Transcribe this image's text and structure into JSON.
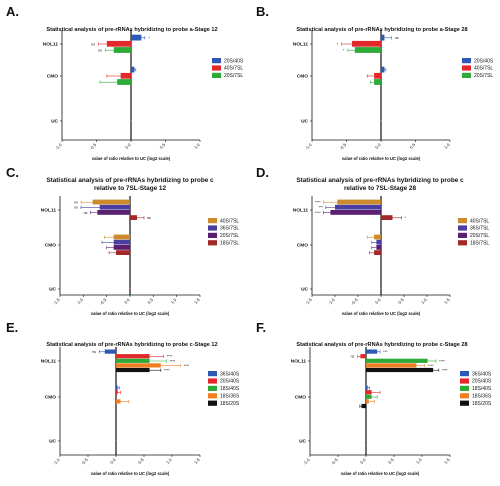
{
  "chart_data": [
    {
      "panel": "A.",
      "type": "bar",
      "title": "Statistical analysis of pre-rRNAs hybridizing to probe a-Stage 12",
      "xlabel": "value of ratio relative to UC (log2 scale)",
      "xlim": [
        -1.0,
        1.0
      ],
      "xticks": [
        "-1.0",
        "-0.5",
        "0.0",
        "0.5",
        "1.0"
      ],
      "categories": [
        "NOL11",
        "CMO",
        "UC"
      ],
      "series": [
        {
          "name": "20S/40S",
          "color": "#2e58b8",
          "values": [
            0.15,
            0.05,
            0.0
          ],
          "errors": [
            0.05,
            0.02,
            0.0
          ],
          "annotations": [
            "*",
            "",
            ""
          ]
        },
        {
          "name": "40S/7SL",
          "color": "#e2282b",
          "values": [
            -0.35,
            -0.15,
            0.0
          ],
          "errors": [
            0.12,
            0.2,
            0.0
          ],
          "annotations": [
            "ns",
            "",
            ""
          ]
        },
        {
          "name": "20S/7SL",
          "color": "#2eaa38",
          "values": [
            -0.25,
            -0.2,
            0.0
          ],
          "errors": [
            0.12,
            0.25,
            0.0
          ],
          "annotations": [
            "ns",
            "",
            ""
          ]
        }
      ]
    },
    {
      "panel": "B.",
      "type": "bar",
      "title": "Statistical analysis of pre-rRNAs hybridizing to probe a-Stage 28",
      "xlabel": "value of ratio relative to UC (log2 scale)",
      "xlim": [
        -1.0,
        1.0
      ],
      "xticks": [
        "-1.0",
        "-0.5",
        "0.0",
        "0.5",
        "1.0"
      ],
      "categories": [
        "NOL11",
        "CMO",
        "UC"
      ],
      "series": [
        {
          "name": "20S/40S",
          "color": "#2e58b8",
          "values": [
            0.05,
            0.05,
            0.0
          ],
          "errors": [
            0.1,
            0.02,
            0.0
          ],
          "annotations": [
            "ns",
            "",
            ""
          ]
        },
        {
          "name": "40S/7SL",
          "color": "#e2282b",
          "values": [
            -0.42,
            -0.1,
            0.0
          ],
          "errors": [
            0.15,
            0.1,
            0.0
          ],
          "annotations": [
            "*",
            "",
            ""
          ]
        },
        {
          "name": "20S/7SL",
          "color": "#2eaa38",
          "values": [
            -0.38,
            -0.1,
            0.0
          ],
          "errors": [
            0.1,
            0.05,
            0.0
          ],
          "annotations": [
            "*",
            "",
            ""
          ]
        }
      ]
    },
    {
      "panel": "C.",
      "type": "bar",
      "title": "Statistical analysis of pre-rRNAs hybridizing to probe c relative to 7SL-Stage 12",
      "xlabel": "value of ratio relative to UC (log2 scale)",
      "xlim": [
        -1.5,
        1.5
      ],
      "xticks": [
        "-1.5",
        "-1.0",
        "-0.5",
        "0.0",
        "0.5",
        "1.0",
        "1.5"
      ],
      "categories": [
        "NOL11",
        "CMO",
        "UC"
      ],
      "series": [
        {
          "name": "40S/7SL",
          "color": "#cc8a2c",
          "values": [
            -0.8,
            -0.35,
            0.0
          ],
          "errors": [
            0.25,
            0.2,
            0.0
          ],
          "annotations": [
            "ns",
            "",
            ""
          ]
        },
        {
          "name": "36S/7SL",
          "color": "#4a3fa0",
          "values": [
            -0.65,
            -0.35,
            0.0
          ],
          "errors": [
            0.4,
            0.25,
            0.0
          ],
          "annotations": [
            "ns",
            "",
            ""
          ]
        },
        {
          "name": "20S/7SL",
          "color": "#5a1f6e",
          "values": [
            -0.7,
            -0.35,
            0.0
          ],
          "errors": [
            0.15,
            0.15,
            0.0
          ],
          "annotations": [
            "ns",
            "",
            ""
          ]
        },
        {
          "name": "18S/7SL",
          "color": "#a42828",
          "values": [
            0.15,
            -0.3,
            0.0
          ],
          "errors": [
            0.15,
            0.15,
            0.0
          ],
          "annotations": [
            "ns",
            "",
            ""
          ]
        }
      ]
    },
    {
      "panel": "D.",
      "type": "bar",
      "title": "Statistical analysis of pre-rRNAs hybridizing to probe c relative to 7SL-Stage 28",
      "xlabel": "value of ratio relative to UC (log2 scale)",
      "xlim": [
        -1.5,
        1.5
      ],
      "xticks": [
        "-1.5",
        "-1.0",
        "-0.5",
        "0.0",
        "0.5",
        "1.0",
        "1.5"
      ],
      "categories": [
        "NOL11",
        "CMO",
        "UC"
      ],
      "series": [
        {
          "name": "40S/7SL",
          "color": "#cc8a2c",
          "values": [
            -0.95,
            -0.15,
            0.0
          ],
          "errors": [
            0.3,
            0.15,
            0.0
          ],
          "annotations": [
            "****",
            "",
            ""
          ]
        },
        {
          "name": "36S/7SL",
          "color": "#4a3fa0",
          "values": [
            -1.0,
            -0.1,
            0.0
          ],
          "errors": [
            0.2,
            0.1,
            0.0
          ],
          "annotations": [
            "***",
            "",
            ""
          ]
        },
        {
          "name": "20S/7SL",
          "color": "#5a1f6e",
          "values": [
            -1.1,
            -0.1,
            0.0
          ],
          "errors": [
            0.15,
            0.1,
            0.0
          ],
          "annotations": [
            "****",
            "",
            ""
          ]
        },
        {
          "name": "18S/7SL",
          "color": "#a42828",
          "values": [
            0.25,
            -0.15,
            0.0
          ],
          "errors": [
            0.2,
            0.1,
            0.0
          ],
          "annotations": [
            "*",
            "",
            ""
          ]
        }
      ]
    },
    {
      "panel": "E.",
      "type": "bar",
      "title": "Statistical analysis of pre-rRNAs hybridizing to probe c-Stage 12",
      "xlabel": "value of ratio relative to UC (log2 scale)",
      "xlim": [
        -1.0,
        1.5
      ],
      "xticks": [
        "-1.0",
        "-0.5",
        "0.0",
        "0.5",
        "1.0",
        "1.5"
      ],
      "categories": [
        "NOL11",
        "CMO",
        "UC"
      ],
      "series": [
        {
          "name": "36S/40S",
          "color": "#2e58b8",
          "values": [
            -0.2,
            0.03,
            0.0
          ],
          "errors": [
            0.1,
            0.03,
            0.0
          ],
          "annotations": [
            "ns",
            "",
            ""
          ]
        },
        {
          "name": "20S/40S",
          "color": "#e2282b",
          "values": [
            0.6,
            0.03,
            0.0
          ],
          "errors": [
            0.25,
            0.05,
            0.0
          ],
          "annotations": [
            "****",
            "",
            ""
          ]
        },
        {
          "name": "18S/40S",
          "color": "#2eaa38",
          "values": [
            0.6,
            0.0,
            0.0
          ],
          "errors": [
            0.3,
            0.05,
            0.0
          ],
          "annotations": [
            "****",
            "",
            ""
          ]
        },
        {
          "name": "18S/36S",
          "color": "#f07e22",
          "values": [
            0.8,
            0.08,
            0.0
          ],
          "errors": [
            0.35,
            0.15,
            0.0
          ],
          "annotations": [
            "****",
            "",
            ""
          ]
        },
        {
          "name": "18S/20S",
          "color": "#111111",
          "values": [
            0.6,
            0.0,
            0.0
          ],
          "errors": [
            0.2,
            0.05,
            0.0
          ],
          "annotations": [
            "****",
            "",
            ""
          ]
        }
      ]
    },
    {
      "panel": "F.",
      "type": "bar",
      "title": "Statistical analysis of pre-rRNAs hybridizing to probe c-Stage 28",
      "xlabel": "value of ratio relative to UC (log2 scale)",
      "xlim": [
        -1.0,
        1.5
      ],
      "xticks": [
        "-1.0",
        "-0.5",
        "0.0",
        "0.5",
        "1.0",
        "1.5"
      ],
      "categories": [
        "NOL11",
        "CMO",
        "UC"
      ],
      "series": [
        {
          "name": "36S/40S",
          "color": "#2e58b8",
          "values": [
            0.2,
            0.03,
            0.0
          ],
          "errors": [
            0.05,
            0.03,
            0.0
          ],
          "annotations": [
            "***",
            "",
            ""
          ]
        },
        {
          "name": "20S/40S",
          "color": "#e2282b",
          "values": [
            -0.1,
            0.1,
            0.0
          ],
          "errors": [
            0.05,
            0.15,
            0.0
          ],
          "annotations": [
            "ns",
            "",
            ""
          ]
        },
        {
          "name": "18S/40S",
          "color": "#2eaa38",
          "values": [
            1.1,
            0.1,
            0.0
          ],
          "errors": [
            0.15,
            0.1,
            0.0
          ],
          "annotations": [
            "****",
            "",
            ""
          ]
        },
        {
          "name": "18S/36S",
          "color": "#f07e22",
          "values": [
            0.9,
            0.05,
            0.0
          ],
          "errors": [
            0.15,
            0.1,
            0.0
          ],
          "annotations": [
            "****",
            "",
            ""
          ]
        },
        {
          "name": "18S/20S",
          "color": "#111111",
          "values": [
            1.2,
            -0.08,
            0.0
          ],
          "errors": [
            0.1,
            0.03,
            0.0
          ],
          "annotations": [
            "****",
            "",
            ""
          ]
        }
      ]
    }
  ]
}
